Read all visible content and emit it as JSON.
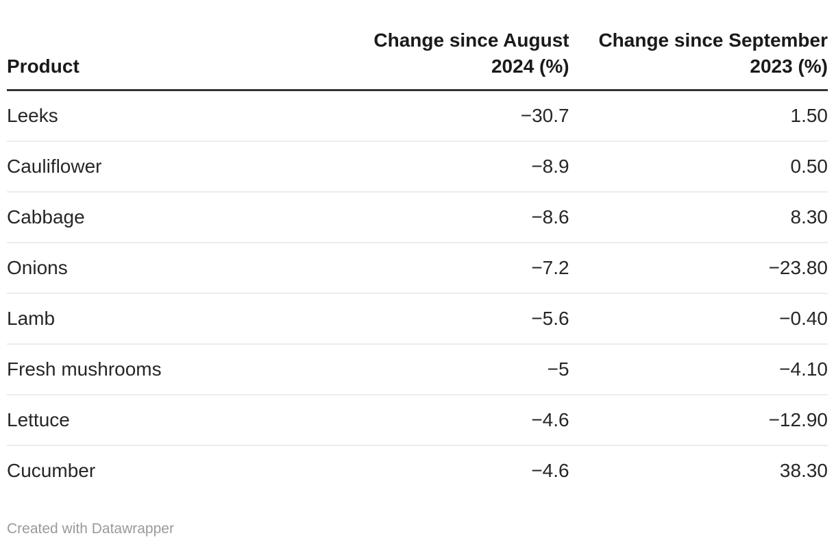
{
  "table": {
    "columns": [
      {
        "label": "Product",
        "align": "left",
        "lines": [
          "Product"
        ]
      },
      {
        "label": "Change since August 2024 (%)",
        "align": "right",
        "lines": [
          "Change since August",
          "2024 (%)"
        ]
      },
      {
        "label": "Change since September 2023 (%)",
        "align": "right",
        "lines": [
          "Change since September",
          "2023 (%)"
        ]
      }
    ],
    "rows": [
      {
        "product": "Leeks",
        "change_aug_2024": "−30.7",
        "change_sep_2023": "1.50"
      },
      {
        "product": "Cauliflower",
        "change_aug_2024": "−8.9",
        "change_sep_2023": "0.50"
      },
      {
        "product": "Cabbage",
        "change_aug_2024": "−8.6",
        "change_sep_2023": "8.30"
      },
      {
        "product": "Onions",
        "change_aug_2024": "−7.2",
        "change_sep_2023": "−23.80"
      },
      {
        "product": "Lamb",
        "change_aug_2024": "−5.6",
        "change_sep_2023": "−0.40"
      },
      {
        "product": "Fresh mushrooms",
        "change_aug_2024": "−5",
        "change_sep_2023": "−4.10"
      },
      {
        "product": "Lettuce",
        "change_aug_2024": "−4.6",
        "change_sep_2023": "−12.90"
      },
      {
        "product": "Cucumber",
        "change_aug_2024": "−4.6",
        "change_sep_2023": "38.30"
      }
    ]
  },
  "footer": {
    "attribution": "Created with Datawrapper"
  },
  "colors": {
    "header_rule": "#333333",
    "row_rule": "#ececec",
    "header_text": "#1a1a1a",
    "body_text": "#262626",
    "attribution_text": "#9a9a9a",
    "background": "#ffffff"
  },
  "chart_data": {
    "type": "table",
    "title": "",
    "columns": [
      "Product",
      "Change since August 2024 (%)",
      "Change since September 2023 (%)"
    ],
    "rows": [
      [
        "Leeks",
        -30.7,
        1.5
      ],
      [
        "Cauliflower",
        -8.9,
        0.5
      ],
      [
        "Cabbage",
        -8.6,
        8.3
      ],
      [
        "Onions",
        -7.2,
        -23.8
      ],
      [
        "Lamb",
        -5.6,
        -0.4
      ],
      [
        "Fresh mushrooms",
        -5,
        -4.1
      ],
      [
        "Lettuce",
        -4.6,
        -12.9
      ],
      [
        "Cucumber",
        -4.6,
        38.3
      ]
    ],
    "layout_hints": {
      "numeric_columns_align": "right",
      "header_rule": true,
      "row_rules": true,
      "attribution": "Created with Datawrapper"
    }
  }
}
